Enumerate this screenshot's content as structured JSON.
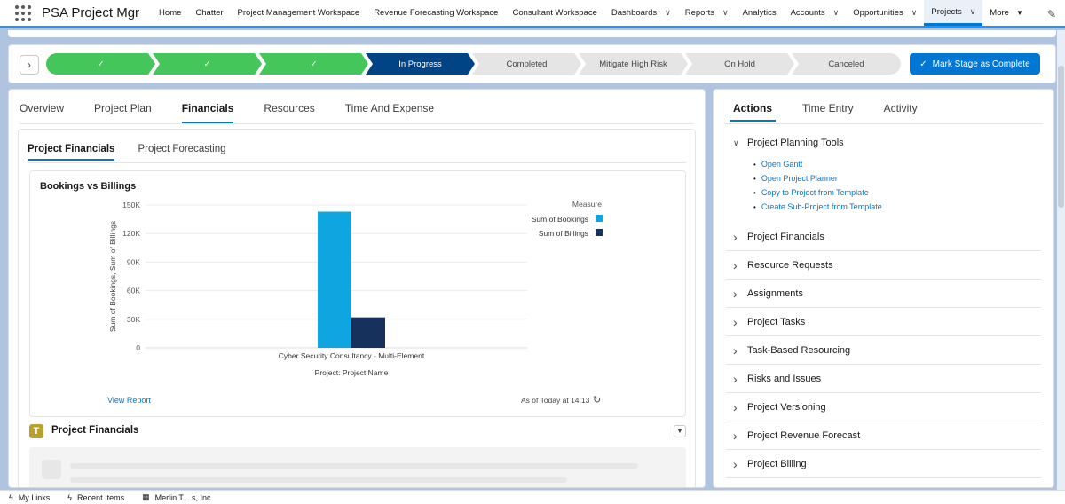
{
  "app": {
    "name": "PSA Project Mgr"
  },
  "nav": {
    "items": [
      {
        "label": "Home",
        "chevron": false
      },
      {
        "label": "Chatter",
        "chevron": false
      },
      {
        "label": "Project Management Workspace",
        "chevron": false
      },
      {
        "label": "Revenue Forecasting Workspace",
        "chevron": false
      },
      {
        "label": "Consultant Workspace",
        "chevron": false
      },
      {
        "label": "Dashboards",
        "chevron": true
      },
      {
        "label": "Reports",
        "chevron": true
      },
      {
        "label": "Analytics",
        "chevron": false
      },
      {
        "label": "Accounts",
        "chevron": true
      },
      {
        "label": "Opportunities",
        "chevron": true
      },
      {
        "label": "Projects",
        "chevron": true,
        "active": true
      }
    ],
    "more_label": "More"
  },
  "path": {
    "steps": [
      {
        "label": "",
        "state": "done"
      },
      {
        "label": "",
        "state": "done"
      },
      {
        "label": "",
        "state": "done"
      },
      {
        "label": "In Progress",
        "state": "current"
      },
      {
        "label": "Completed",
        "state": "todo"
      },
      {
        "label": "Mitigate High Risk",
        "state": "todo"
      },
      {
        "label": "On Hold",
        "state": "todo"
      },
      {
        "label": "Canceled",
        "state": "todo"
      }
    ],
    "mark_button": "Mark Stage as Complete"
  },
  "left": {
    "tabs": [
      "Overview",
      "Project Plan",
      "Financials",
      "Resources",
      "Time And Expense"
    ],
    "active_tab": "Financials",
    "subtabs": [
      "Project Financials",
      "Project Forecasting"
    ],
    "view_report": "View Report",
    "as_of": "As of Today at 14:13",
    "section_title": "Project Financials"
  },
  "chart_data": {
    "type": "bar",
    "title": "Bookings vs Billings",
    "xlabel": "Project: Project Name",
    "ylabel": "Sum of Bookings, Sum of Billings",
    "legend_title": "Measure",
    "legend_position": "top-right",
    "categories": [
      "Cyber Security Consultancy - Multi-Element"
    ],
    "series": [
      {
        "name": "Sum of Bookings",
        "values": [
          143000
        ],
        "color": "#0ea5e0"
      },
      {
        "name": "Sum of Billings",
        "values": [
          32000
        ],
        "color": "#16325c"
      }
    ],
    "ylim": [
      0,
      150000
    ],
    "yticks": [
      0,
      30000,
      60000,
      90000,
      120000,
      150000
    ],
    "ytick_labels": [
      "0",
      "30K",
      "60K",
      "90K",
      "120K",
      "150K"
    ],
    "grid": true
  },
  "right": {
    "tabs": [
      "Actions",
      "Time Entry",
      "Activity"
    ],
    "active_tab": "Actions",
    "open_section": {
      "label": "Project Planning Tools",
      "links": [
        "Open Gantt",
        "Open Project Planner",
        "Copy to Project from Template",
        "Create Sub-Project from Template"
      ]
    },
    "sections": [
      "Project Financials",
      "Resource Requests",
      "Assignments",
      "Project Tasks",
      "Task-Based Resourcing",
      "Risks and Issues",
      "Project Versioning",
      "Project Revenue Forecast",
      "Project Billing"
    ]
  },
  "footer": {
    "items": [
      {
        "label": "My Links",
        "icon": "bolt-icon"
      },
      {
        "label": "Recent Items",
        "icon": "bolt-icon"
      },
      {
        "label": "Merlin T... s, Inc.",
        "icon": "building-icon"
      }
    ]
  }
}
